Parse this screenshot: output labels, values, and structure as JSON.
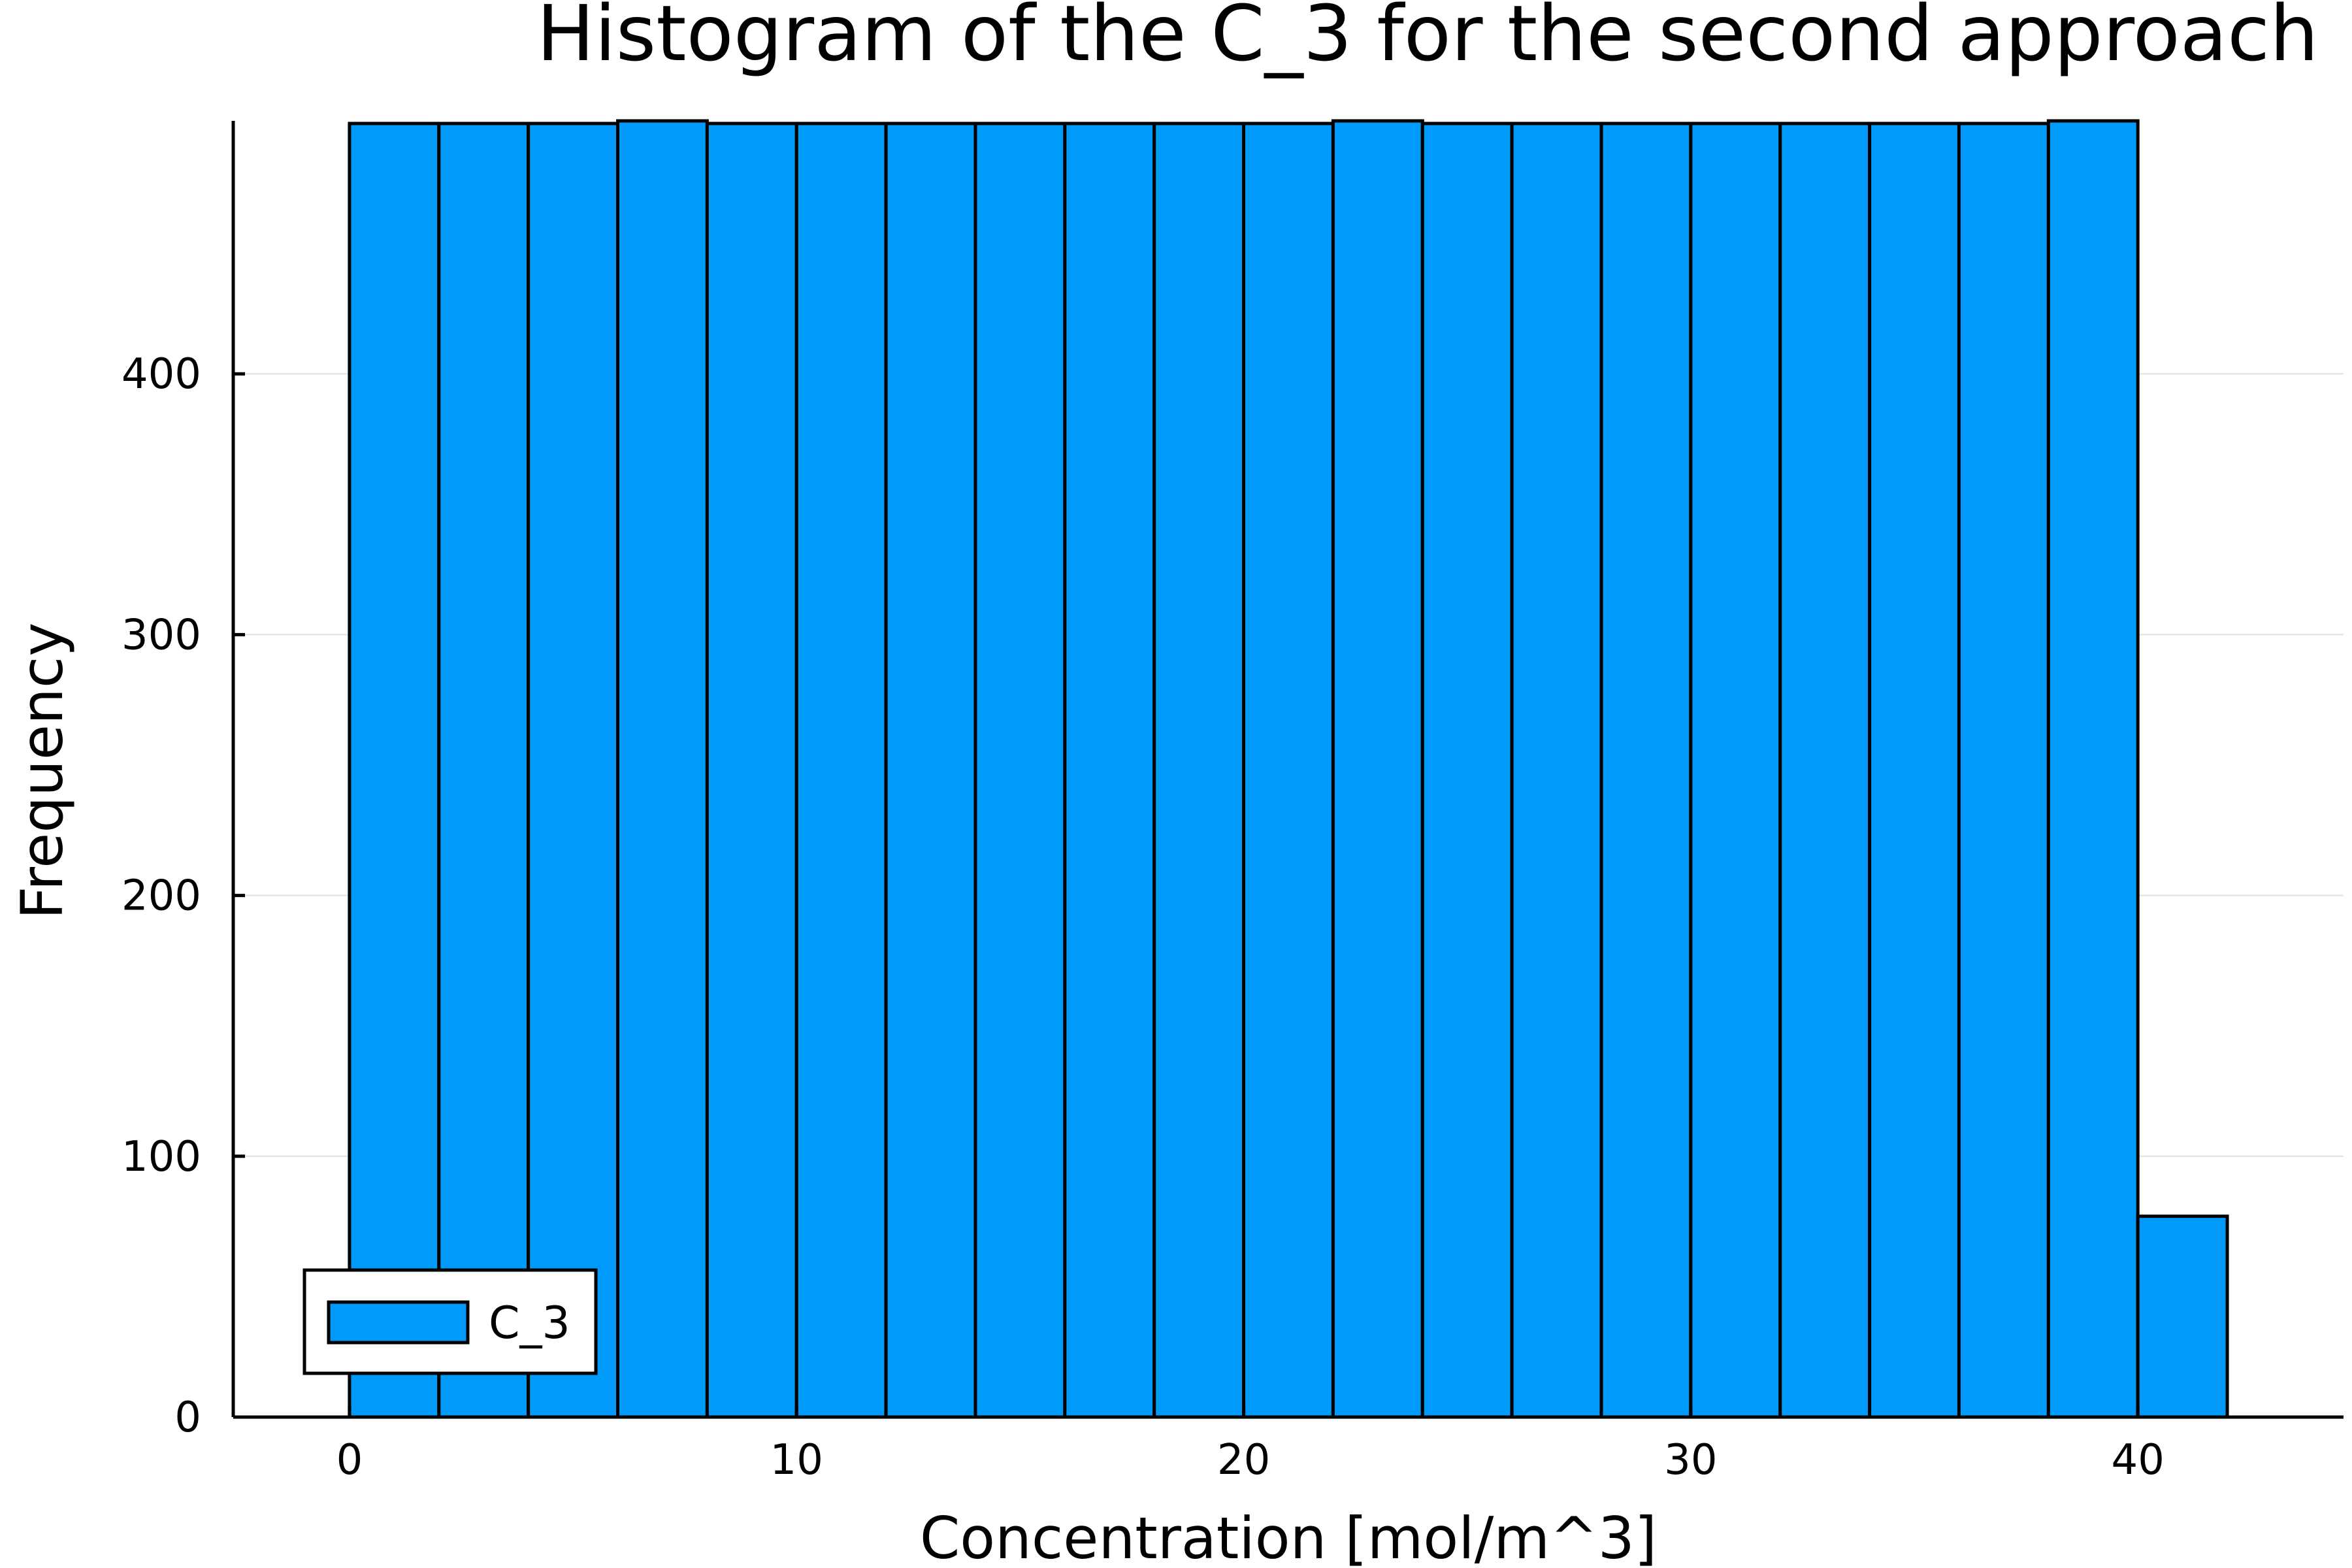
{
  "chart_data": {
    "type": "bar",
    "title": "Histogram of the C_3 for the second approach",
    "xlabel": "Concentration [mol/m^3]",
    "ylabel": "Frequency",
    "bin_width": 2,
    "bin_starts": [
      0,
      2,
      4,
      6,
      8,
      10,
      12,
      14,
      16,
      18,
      20,
      22,
      24,
      26,
      28,
      30,
      32,
      34,
      36,
      38,
      40
    ],
    "values": [
      496,
      496,
      496,
      497,
      496,
      496,
      496,
      496,
      496,
      496,
      496,
      497,
      496,
      496,
      496,
      496,
      496,
      496,
      496,
      497,
      77
    ],
    "xlim": [
      -2.6,
      44.6
    ],
    "ylim": [
      0,
      497
    ],
    "x_ticks": [
      0,
      10,
      20,
      30,
      40
    ],
    "y_ticks": [
      0,
      100,
      200,
      300,
      400
    ],
    "grid": true,
    "legend_position": "bottom-left",
    "series": [
      {
        "name": "C_3",
        "color": "#009AFA"
      }
    ]
  }
}
